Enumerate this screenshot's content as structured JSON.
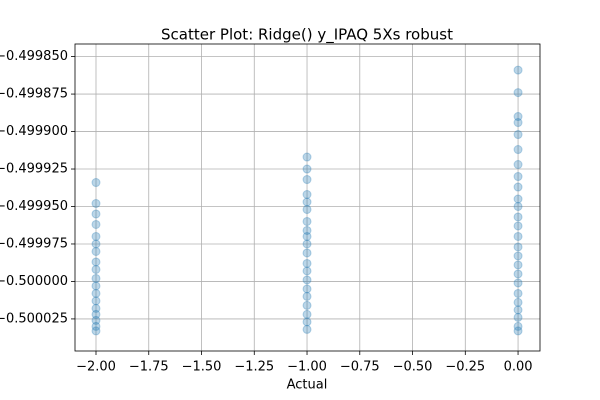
{
  "chart_data": {
    "type": "scatter",
    "title": "Scatter Plot: Ridge() y_IPAQ 5Xs robust",
    "xlabel": "Actual",
    "xlim": [
      -2.0995,
      0.104
    ],
    "ylim": [
      -0.5000464,
      -0.4998416
    ],
    "xticks": [
      {
        "value": -2,
        "label": "−2.00"
      },
      {
        "value": -1.75,
        "label": "−1.75"
      },
      {
        "value": -1.5,
        "label": "−1.50"
      },
      {
        "value": -1.25,
        "label": "−1.25"
      },
      {
        "value": -1,
        "label": "−1.00"
      },
      {
        "value": -0.75,
        "label": "−0.75"
      },
      {
        "value": -0.5,
        "label": "−0.50"
      },
      {
        "value": -0.25,
        "label": "−0.25"
      },
      {
        "value": 0,
        "label": "0.00"
      }
    ],
    "yticks": [
      {
        "value": -0.49985,
        "label": "−0.499850"
      },
      {
        "value": -0.499875,
        "label": "−0.499875"
      },
      {
        "value": -0.4999,
        "label": "−0.499900"
      },
      {
        "value": -0.499925,
        "label": "−0.499925"
      },
      {
        "value": -0.49995,
        "label": "−0.499950"
      },
      {
        "value": -0.499975,
        "label": "−0.499975"
      },
      {
        "value": -0.5,
        "label": "−0.500000"
      },
      {
        "value": -0.500025,
        "label": "−0.500025"
      }
    ],
    "grid": true,
    "color": "#1f77b4",
    "x": [
      -2,
      -2,
      -2,
      -2,
      -2,
      -2,
      -2,
      -2,
      -2,
      -2,
      -2,
      -2,
      -2,
      -2,
      -2,
      -2,
      -2,
      -2,
      -1,
      -1,
      -1,
      -1,
      -1,
      -1,
      -1,
      -1,
      -1,
      -1,
      -1,
      -1,
      -1,
      -1,
      -1,
      -1,
      -1,
      -1,
      -1,
      -1,
      0,
      0,
      0,
      0,
      0,
      0,
      0,
      0,
      0,
      0,
      0,
      0,
      0,
      0,
      0,
      0,
      0,
      0,
      0,
      0,
      0,
      0,
      0,
      0,
      0
    ],
    "y": [
      -0.499934,
      -0.499948,
      -0.499955,
      -0.499962,
      -0.49997,
      -0.499975,
      -0.49998,
      -0.499987,
      -0.499992,
      -0.499998,
      -0.500003,
      -0.500008,
      -0.500013,
      -0.500018,
      -0.500022,
      -0.500026,
      -0.50003,
      -0.500033,
      -0.499917,
      -0.499925,
      -0.499932,
      -0.499942,
      -0.499947,
      -0.499952,
      -0.49996,
      -0.499966,
      -0.49997,
      -0.499975,
      -0.499981,
      -0.499988,
      -0.499993,
      -0.499999,
      -0.500005,
      -0.50001,
      -0.500016,
      -0.500022,
      -0.500027,
      -0.500032,
      -0.499859,
      -0.499874,
      -0.49989,
      -0.499894,
      -0.499902,
      -0.499912,
      -0.499922,
      -0.49993,
      -0.499937,
      -0.499945,
      -0.49995,
      -0.499957,
      -0.499963,
      -0.49997,
      -0.499977,
      -0.499983,
      -0.499989,
      -0.499995,
      -0.500001,
      -0.500008,
      -0.500014,
      -0.500019,
      -0.500024,
      -0.50003,
      -0.500033
    ]
  }
}
